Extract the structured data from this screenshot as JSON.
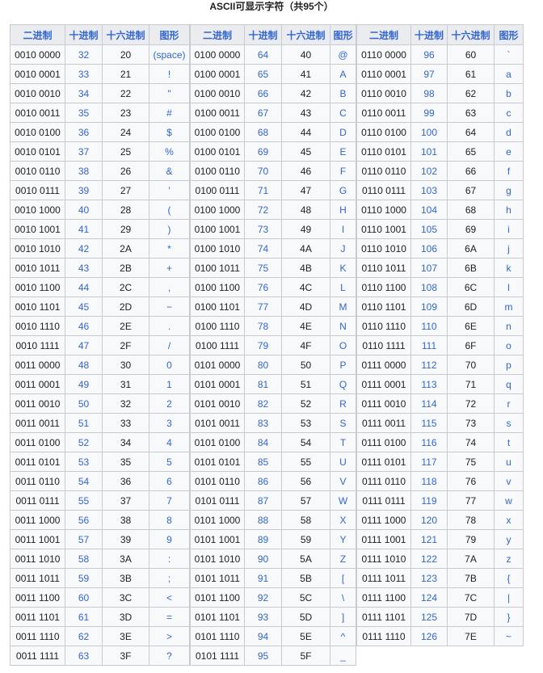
{
  "title": "ASCII可显示字符（共95个）",
  "headers": [
    "二进制",
    "十进制",
    "十六进制",
    "图形"
  ],
  "tables": [
    {
      "rows": [
        [
          "0010 0000",
          "32",
          "20",
          "(space)"
        ],
        [
          "0010 0001",
          "33",
          "21",
          "!"
        ],
        [
          "0010 0010",
          "34",
          "22",
          "\""
        ],
        [
          "0010 0011",
          "35",
          "23",
          "#"
        ],
        [
          "0010 0100",
          "36",
          "24",
          "$"
        ],
        [
          "0010 0101",
          "37",
          "25",
          "%"
        ],
        [
          "0010 0110",
          "38",
          "26",
          "&"
        ],
        [
          "0010 0111",
          "39",
          "27",
          "'"
        ],
        [
          "0010 1000",
          "40",
          "28",
          "("
        ],
        [
          "0010 1001",
          "41",
          "29",
          ")"
        ],
        [
          "0010 1010",
          "42",
          "2A",
          "*"
        ],
        [
          "0010 1011",
          "43",
          "2B",
          "+"
        ],
        [
          "0010 1100",
          "44",
          "2C",
          ","
        ],
        [
          "0010 1101",
          "45",
          "2D",
          "−"
        ],
        [
          "0010 1110",
          "46",
          "2E",
          "."
        ],
        [
          "0010 1111",
          "47",
          "2F",
          "/"
        ],
        [
          "0011 0000",
          "48",
          "30",
          "0"
        ],
        [
          "0011 0001",
          "49",
          "31",
          "1"
        ],
        [
          "0011 0010",
          "50",
          "32",
          "2"
        ],
        [
          "0011 0011",
          "51",
          "33",
          "3"
        ],
        [
          "0011 0100",
          "52",
          "34",
          "4"
        ],
        [
          "0011 0101",
          "53",
          "35",
          "5"
        ],
        [
          "0011 0110",
          "54",
          "36",
          "6"
        ],
        [
          "0011 0111",
          "55",
          "37",
          "7"
        ],
        [
          "0011 1000",
          "56",
          "38",
          "8"
        ],
        [
          "0011 1001",
          "57",
          "39",
          "9"
        ],
        [
          "0011 1010",
          "58",
          "3A",
          ":"
        ],
        [
          "0011 1011",
          "59",
          "3B",
          ";"
        ],
        [
          "0011 1100",
          "60",
          "3C",
          "<"
        ],
        [
          "0011 1101",
          "61",
          "3D",
          "="
        ],
        [
          "0011 1110",
          "62",
          "3E",
          ">"
        ],
        [
          "0011 1111",
          "63",
          "3F",
          "?"
        ]
      ]
    },
    {
      "rows": [
        [
          "0100 0000",
          "64",
          "40",
          "@"
        ],
        [
          "0100 0001",
          "65",
          "41",
          "A"
        ],
        [
          "0100 0010",
          "66",
          "42",
          "B"
        ],
        [
          "0100 0011",
          "67",
          "43",
          "C"
        ],
        [
          "0100 0100",
          "68",
          "44",
          "D"
        ],
        [
          "0100 0101",
          "69",
          "45",
          "E"
        ],
        [
          "0100 0110",
          "70",
          "46",
          "F"
        ],
        [
          "0100 0111",
          "71",
          "47",
          "G"
        ],
        [
          "0100 1000",
          "72",
          "48",
          "H"
        ],
        [
          "0100 1001",
          "73",
          "49",
          "I"
        ],
        [
          "0100 1010",
          "74",
          "4A",
          "J"
        ],
        [
          "0100 1011",
          "75",
          "4B",
          "K"
        ],
        [
          "0100 1100",
          "76",
          "4C",
          "L"
        ],
        [
          "0100 1101",
          "77",
          "4D",
          "M"
        ],
        [
          "0100 1110",
          "78",
          "4E",
          "N"
        ],
        [
          "0100 1111",
          "79",
          "4F",
          "O"
        ],
        [
          "0101 0000",
          "80",
          "50",
          "P"
        ],
        [
          "0101 0001",
          "81",
          "51",
          "Q"
        ],
        [
          "0101 0010",
          "82",
          "52",
          "R"
        ],
        [
          "0101 0011",
          "83",
          "53",
          "S"
        ],
        [
          "0101 0100",
          "84",
          "54",
          "T"
        ],
        [
          "0101 0101",
          "85",
          "55",
          "U"
        ],
        [
          "0101 0110",
          "86",
          "56",
          "V"
        ],
        [
          "0101 0111",
          "87",
          "57",
          "W"
        ],
        [
          "0101 1000",
          "88",
          "58",
          "X"
        ],
        [
          "0101 1001",
          "89",
          "59",
          "Y"
        ],
        [
          "0101 1010",
          "90",
          "5A",
          "Z"
        ],
        [
          "0101 1011",
          "91",
          "5B",
          "["
        ],
        [
          "0101 1100",
          "92",
          "5C",
          "\\"
        ],
        [
          "0101 1101",
          "93",
          "5D",
          "]"
        ],
        [
          "0101 1110",
          "94",
          "5E",
          "^"
        ],
        [
          "0101 1111",
          "95",
          "5F",
          "_"
        ]
      ]
    },
    {
      "rows": [
        [
          "0110 0000",
          "96",
          "60",
          "`"
        ],
        [
          "0110 0001",
          "97",
          "61",
          "a"
        ],
        [
          "0110 0010",
          "98",
          "62",
          "b"
        ],
        [
          "0110 0011",
          "99",
          "63",
          "c"
        ],
        [
          "0110 0100",
          "100",
          "64",
          "d"
        ],
        [
          "0110 0101",
          "101",
          "65",
          "e"
        ],
        [
          "0110 0110",
          "102",
          "66",
          "f"
        ],
        [
          "0110 0111",
          "103",
          "67",
          "g"
        ],
        [
          "0110 1000",
          "104",
          "68",
          "h"
        ],
        [
          "0110 1001",
          "105",
          "69",
          "i"
        ],
        [
          "0110 1010",
          "106",
          "6A",
          "j"
        ],
        [
          "0110 1011",
          "107",
          "6B",
          "k"
        ],
        [
          "0110 1100",
          "108",
          "6C",
          "l"
        ],
        [
          "0110 1101",
          "109",
          "6D",
          "m"
        ],
        [
          "0110 1110",
          "110",
          "6E",
          "n"
        ],
        [
          "0110 1111",
          "111",
          "6F",
          "o"
        ],
        [
          "0111 0000",
          "112",
          "70",
          "p"
        ],
        [
          "0111 0001",
          "113",
          "71",
          "q"
        ],
        [
          "0111 0010",
          "114",
          "72",
          "r"
        ],
        [
          "0111 0011",
          "115",
          "73",
          "s"
        ],
        [
          "0111 0100",
          "116",
          "74",
          "t"
        ],
        [
          "0111 0101",
          "117",
          "75",
          "u"
        ],
        [
          "0111 0110",
          "118",
          "76",
          "v"
        ],
        [
          "0111 0111",
          "119",
          "77",
          "w"
        ],
        [
          "0111 1000",
          "120",
          "78",
          "x"
        ],
        [
          "0111 1001",
          "121",
          "79",
          "y"
        ],
        [
          "0111 1010",
          "122",
          "7A",
          "z"
        ],
        [
          "0111 1011",
          "123",
          "7B",
          "{"
        ],
        [
          "0111 1100",
          "124",
          "7C",
          "|"
        ],
        [
          "0111 1101",
          "125",
          "7D",
          "}"
        ],
        [
          "0111 1110",
          "126",
          "7E",
          "~"
        ]
      ]
    }
  ],
  "colors": {
    "link": "#3366cc",
    "header_bg": "#eaecf0",
    "cell_bg": "#f8f9fa",
    "border": "#c8ccd1"
  }
}
